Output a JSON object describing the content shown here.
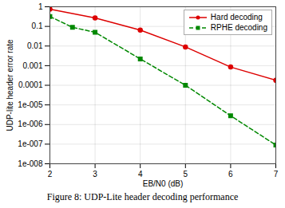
{
  "chart_data": {
    "type": "line",
    "title": "Figure 8: UDP-Lite header decoding performance",
    "xlabel": "EB/N0 (dB)",
    "ylabel": "UDP-lite header error rate",
    "series": [
      {
        "name": "Hard decoding",
        "color": "#dd0000",
        "marker": "circle",
        "line_style": "solid",
        "x": [
          2,
          3,
          4,
          5,
          6,
          7
        ],
        "values": [
          0.75,
          0.27,
          0.065,
          0.009,
          0.00085,
          0.00018
        ]
      },
      {
        "name": "RPHE decoding",
        "color": "#008800",
        "marker": "square",
        "line_style": "dashed",
        "x": [
          2,
          2.5,
          3,
          4,
          5,
          6,
          7
        ],
        "values": [
          0.32,
          0.09,
          0.05,
          0.0022,
          0.0001,
          2.8e-06,
          9e-08
        ]
      }
    ],
    "xlim": [
      2,
      7
    ],
    "xticks": [
      2,
      3,
      4,
      5,
      6,
      7
    ],
    "ylim": [
      1e-08,
      1
    ],
    "yticks": [
      {
        "value": 1e-08,
        "label": "1e-008"
      },
      {
        "value": 1e-07,
        "label": "1e-007"
      },
      {
        "value": 1e-06,
        "label": "1e-006"
      },
      {
        "value": 1e-05,
        "label": "1e-005"
      },
      0.0001,
      0.001,
      0.01,
      0.1,
      1
    ],
    "log": "y",
    "grid": true,
    "legend": "upper right"
  }
}
